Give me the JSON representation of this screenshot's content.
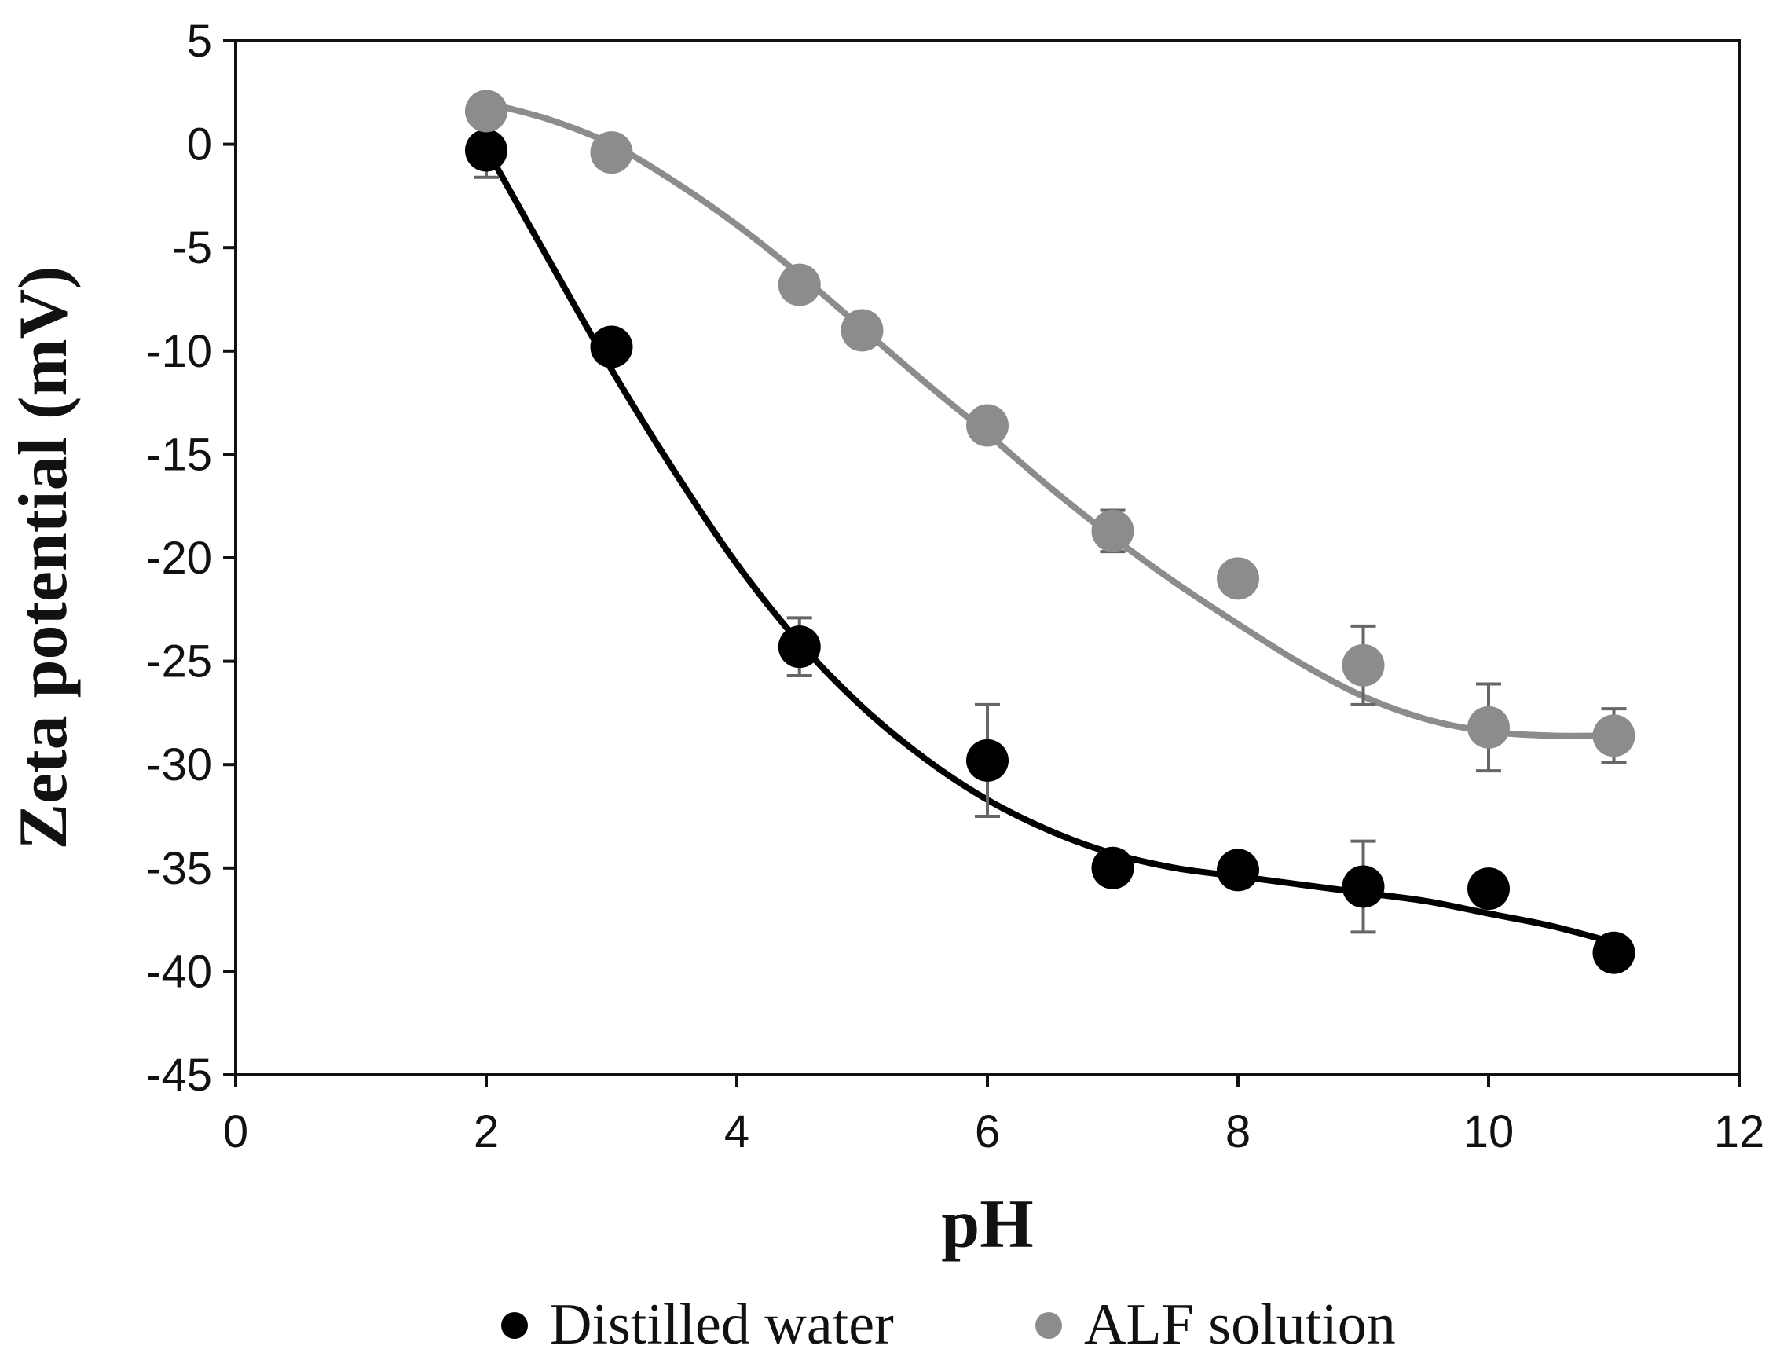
{
  "chart_data": {
    "type": "scatter",
    "title": "",
    "xlabel": "pH",
    "ylabel": "Zeta potential (mV)",
    "xlim": [
      0,
      12
    ],
    "ylim": [
      -45,
      5
    ],
    "x_ticks": [
      0,
      2,
      4,
      6,
      8,
      10,
      12
    ],
    "y_ticks": [
      5,
      0,
      -5,
      -10,
      -15,
      -20,
      -25,
      -30,
      -35,
      -40,
      -45
    ],
    "grid": false,
    "legend_position": "bottom",
    "series": [
      {
        "name": "Distilled water",
        "color": "#000000",
        "x": [
          2,
          3,
          4.5,
          6,
          7,
          8,
          9,
          10,
          11
        ],
        "y": [
          -0.3,
          -9.8,
          -24.3,
          -29.8,
          -35.0,
          -35.1,
          -35.9,
          -36.0,
          -39.1
        ],
        "error": [
          1.3,
          0.4,
          1.4,
          2.7,
          0.8,
          0.3,
          2.2,
          0.3,
          0.3
        ],
        "trend_x": [
          2,
          2.5,
          3,
          3.5,
          4,
          4.5,
          5,
          5.5,
          6,
          6.5,
          7,
          7.5,
          8,
          8.5,
          9,
          9.5,
          10,
          10.5,
          11
        ],
        "trend_y": [
          -0.2,
          -5.6,
          -10.9,
          -15.8,
          -20.3,
          -24.1,
          -27.2,
          -29.7,
          -31.7,
          -33.2,
          -34.3,
          -35.0,
          -35.4,
          -35.8,
          -36.2,
          -36.6,
          -37.2,
          -37.8,
          -38.6
        ]
      },
      {
        "name": "ALF solution",
        "color": "#8c8c8c",
        "x": [
          2,
          3,
          4.5,
          5,
          6,
          7,
          8,
          9,
          10,
          11
        ],
        "y": [
          1.6,
          -0.4,
          -6.8,
          -9.0,
          -13.6,
          -18.7,
          -21.0,
          -25.2,
          -28.2,
          -28.6
        ],
        "error": [
          0.3,
          0.3,
          0.3,
          0.3,
          0.3,
          1.0,
          0.3,
          1.9,
          2.1,
          1.3
        ],
        "trend_x": [
          2,
          2.5,
          3,
          3.5,
          4,
          4.5,
          5,
          5.5,
          6,
          6.5,
          7,
          7.5,
          8,
          8.5,
          9,
          9.5,
          10,
          10.5,
          11
        ],
        "trend_y": [
          2.0,
          1.2,
          0.0,
          -1.8,
          -3.9,
          -6.3,
          -8.9,
          -11.5,
          -14.0,
          -16.6,
          -19.0,
          -21.2,
          -23.2,
          -25.1,
          -26.7,
          -27.8,
          -28.4,
          -28.6,
          -28.6
        ]
      }
    ]
  }
}
